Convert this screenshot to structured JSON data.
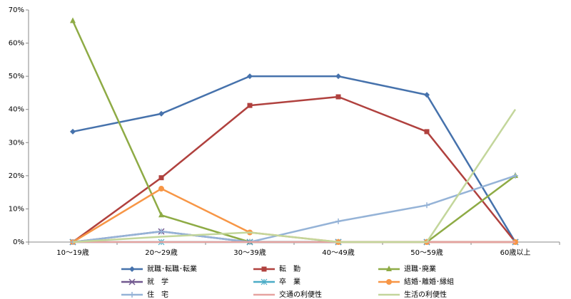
{
  "chart_data": {
    "type": "line",
    "categories": [
      "10～19歳",
      "20～29歳",
      "30～39歳",
      "40～49歳",
      "50～59歳",
      "60歳以上"
    ],
    "ylim": [
      0,
      70
    ],
    "yticks": [
      {
        "value": 0,
        "label": "0%"
      },
      {
        "value": 10,
        "label": "10%"
      },
      {
        "value": 20,
        "label": "20%"
      },
      {
        "value": 30,
        "label": "30%"
      },
      {
        "value": 40,
        "label": "40%"
      },
      {
        "value": 50,
        "label": "50%"
      },
      {
        "value": 60,
        "label": "60%"
      },
      {
        "value": 70,
        "label": "70%"
      }
    ],
    "grid": false,
    "series": [
      {
        "name": "就職･転職･転業",
        "color": "#4672ac",
        "marker": "diamond",
        "values": [
          33.3,
          38.7,
          50,
          50,
          44.4,
          0
        ]
      },
      {
        "name": "転　勤",
        "color": "#b0413e",
        "marker": "square",
        "values": [
          0,
          19.4,
          41.2,
          43.8,
          33.3,
          0
        ]
      },
      {
        "name": "退職･廃業",
        "color": "#8eab45",
        "marker": "triangle",
        "values": [
          66.7,
          8.1,
          0,
          0,
          0,
          20
        ]
      },
      {
        "name": "就　学",
        "color": "#71588f",
        "marker": "x",
        "values": [
          0,
          3.2,
          0,
          0,
          0,
          0
        ]
      },
      {
        "name": "卒　業",
        "color": "#4bacc6",
        "marker": "star",
        "values": [
          0,
          0,
          0,
          0,
          0,
          0
        ]
      },
      {
        "name": "結婚･離婚･縁組",
        "color": "#f79646",
        "marker": "circle",
        "values": [
          0,
          16.1,
          2.9,
          0,
          0,
          0
        ]
      },
      {
        "name": "住　宅",
        "color": "#95b3d7",
        "marker": "plus",
        "values": [
          0,
          3.2,
          0,
          6.25,
          11.1,
          20
        ]
      },
      {
        "name": "交通の利便性",
        "color": "#e6a3a0",
        "marker": "none",
        "values": [
          0,
          0,
          0,
          0,
          0,
          0
        ]
      },
      {
        "name": "生活の利便性",
        "color": "#c3d69b",
        "marker": "none",
        "values": [
          0,
          1.6,
          2.9,
          0,
          0,
          40
        ]
      }
    ]
  }
}
